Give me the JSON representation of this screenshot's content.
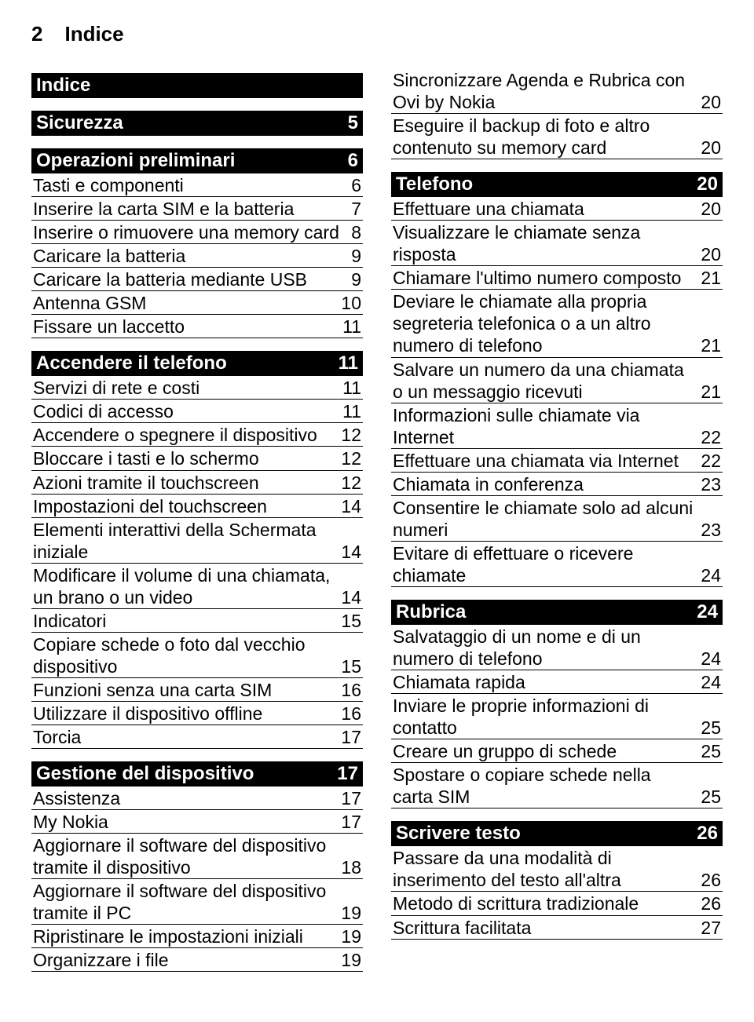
{
  "header": {
    "page_number": "2",
    "title": "Indice"
  },
  "left_col": [
    {
      "type": "header",
      "label": "Indice",
      "page": ""
    },
    {
      "type": "spacer"
    },
    {
      "type": "header",
      "label": "Sicurezza",
      "page": "5"
    },
    {
      "type": "spacer"
    },
    {
      "type": "header",
      "label": "Operazioni preliminari",
      "page": "6"
    },
    {
      "type": "item",
      "label": "Tasti e componenti",
      "page": "6"
    },
    {
      "type": "item",
      "label": "Inserire la carta SIM e la batteria",
      "page": "7"
    },
    {
      "type": "item",
      "label": "Inserire o rimuovere una memory card",
      "page": "8"
    },
    {
      "type": "item",
      "label": "Caricare la batteria",
      "page": "9"
    },
    {
      "type": "item",
      "label": "Caricare la batteria mediante USB",
      "page": "9"
    },
    {
      "type": "item",
      "label": "Antenna GSM",
      "page": "10"
    },
    {
      "type": "item",
      "label": "Fissare un laccetto",
      "page": "11"
    },
    {
      "type": "spacer"
    },
    {
      "type": "header",
      "label": "Accendere il telefono",
      "page": "11"
    },
    {
      "type": "item",
      "label": "Servizi di rete e costi",
      "page": "11"
    },
    {
      "type": "item",
      "label": "Codici di accesso",
      "page": "11"
    },
    {
      "type": "item",
      "label": "Accendere o spegnere il dispositivo",
      "page": "12"
    },
    {
      "type": "item",
      "label": "Bloccare i tasti e lo schermo",
      "page": "12"
    },
    {
      "type": "item",
      "label": "Azioni tramite il touchscreen",
      "page": "12"
    },
    {
      "type": "item",
      "label": "Impostazioni del touchscreen",
      "page": "14"
    },
    {
      "type": "item",
      "label": "Elementi interattivi della Schermata iniziale",
      "page": "14"
    },
    {
      "type": "item",
      "label": "Modificare il volume di una chiamata, un brano o un video",
      "page": "14"
    },
    {
      "type": "item",
      "label": "Indicatori",
      "page": "15"
    },
    {
      "type": "item",
      "label": "Copiare schede o foto dal vecchio dispositivo",
      "page": "15"
    },
    {
      "type": "item",
      "label": "Funzioni senza una carta SIM",
      "page": "16"
    },
    {
      "type": "item",
      "label": "Utilizzare il dispositivo offline",
      "page": "16"
    },
    {
      "type": "item",
      "label": "Torcia",
      "page": "17"
    },
    {
      "type": "spacer"
    },
    {
      "type": "header",
      "label": "Gestione del dispositivo",
      "page": "17"
    },
    {
      "type": "item",
      "label": "Assistenza",
      "page": "17"
    },
    {
      "type": "item",
      "label": "My Nokia",
      "page": "17"
    },
    {
      "type": "item",
      "label": "Aggiornare il software del dispositivo tramite il dispositivo",
      "page": "18"
    },
    {
      "type": "item",
      "label": "Aggiornare il software del dispositivo tramite il PC",
      "page": "19"
    },
    {
      "type": "item",
      "label": "Ripristinare le impostazioni iniziali",
      "page": "19"
    },
    {
      "type": "item",
      "label": "Organizzare i file",
      "page": "19"
    }
  ],
  "right_col": [
    {
      "type": "item",
      "label": "Sincronizzare Agenda e Rubrica con Ovi by Nokia",
      "page": "20"
    },
    {
      "type": "item",
      "label": "Eseguire il backup di foto e altro contenuto su memory card",
      "page": "20"
    },
    {
      "type": "spacer"
    },
    {
      "type": "header",
      "label": "Telefono",
      "page": "20"
    },
    {
      "type": "item",
      "label": "Effettuare una chiamata",
      "page": "20"
    },
    {
      "type": "item",
      "label": "Visualizzare le chiamate senza risposta",
      "page": "20"
    },
    {
      "type": "item",
      "label": "Chiamare l'ultimo numero composto",
      "page": "21"
    },
    {
      "type": "item",
      "label": "Deviare le chiamate alla propria segreteria telefonica o a un altro numero di telefono",
      "page": "21"
    },
    {
      "type": "item",
      "label": "Salvare un numero da una chiamata o un messaggio ricevuti",
      "page": "21"
    },
    {
      "type": "item",
      "label": "Informazioni sulle chiamate via Internet",
      "page": "22"
    },
    {
      "type": "item",
      "label": "Effettuare una chiamata via Internet",
      "page": "22"
    },
    {
      "type": "item",
      "label": "Chiamata in conferenza",
      "page": "23"
    },
    {
      "type": "item",
      "label": "Consentire le chiamate solo ad alcuni numeri",
      "page": "23"
    },
    {
      "type": "item",
      "label": "Evitare di effettuare o ricevere chiamate",
      "page": "24"
    },
    {
      "type": "spacer"
    },
    {
      "type": "header",
      "label": "Rubrica",
      "page": "24"
    },
    {
      "type": "item",
      "label": "Salvataggio di un nome e di un numero di telefono",
      "page": "24"
    },
    {
      "type": "item",
      "label": "Chiamata rapida",
      "page": "24"
    },
    {
      "type": "item",
      "label": "Inviare le proprie informazioni di contatto",
      "page": "25"
    },
    {
      "type": "item",
      "label": "Creare un gruppo di schede",
      "page": "25"
    },
    {
      "type": "item",
      "label": "Spostare o copiare schede nella carta SIM",
      "page": "25"
    },
    {
      "type": "spacer"
    },
    {
      "type": "header",
      "label": "Scrivere testo",
      "page": "26"
    },
    {
      "type": "item",
      "label": "Passare da una modalità di inserimento del testo all'altra",
      "page": "26"
    },
    {
      "type": "item",
      "label": "Metodo di scrittura tradizionale",
      "page": "26"
    },
    {
      "type": "item",
      "label": "Scrittura facilitata",
      "page": "27"
    }
  ]
}
